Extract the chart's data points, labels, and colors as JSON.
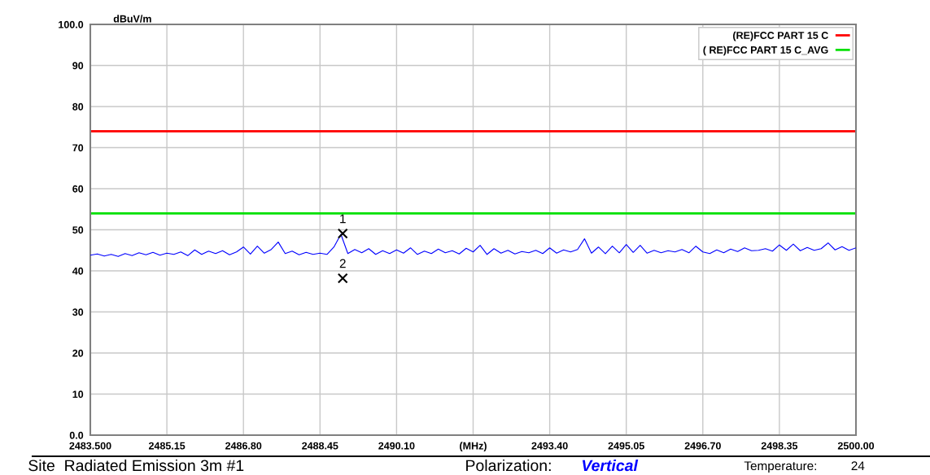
{
  "chart_data": {
    "type": "line",
    "ylabel": "dBuV/m",
    "xlim": [
      2483.5,
      2500.0
    ],
    "xticks": [
      {
        "value": 2483.5,
        "label": "2483.500"
      },
      {
        "value": 2485.15,
        "label": "2485.15"
      },
      {
        "value": 2486.8,
        "label": "2486.80"
      },
      {
        "value": 2488.45,
        "label": "2488.45"
      },
      {
        "value": 2490.1,
        "label": "2490.10"
      },
      {
        "value": 2491.75,
        "label": "(MHz)"
      },
      {
        "value": 2493.4,
        "label": "2493.40"
      },
      {
        "value": 2495.05,
        "label": "2495.05"
      },
      {
        "value": 2496.7,
        "label": "2496.70"
      },
      {
        "value": 2498.35,
        "label": "2498.35"
      },
      {
        "value": 2500.0,
        "label": "2500.00"
      }
    ],
    "ylim": [
      0,
      100
    ],
    "yticks": [
      {
        "value": 0,
        "label": "0.0"
      },
      10,
      20,
      30,
      40,
      50,
      60,
      70,
      80,
      90,
      {
        "value": 100,
        "label": "100.0"
      }
    ],
    "grid": true,
    "legend": "top right",
    "series": [
      {
        "color": "#0000ff",
        "marker": "none",
        "line_style": "solid",
        "x": [
          2483.5,
          2483.65,
          2483.8,
          2483.95,
          2484.1,
          2484.25,
          2484.4,
          2484.55,
          2484.7,
          2484.85,
          2485.0,
          2485.15,
          2485.3,
          2485.45,
          2485.6,
          2485.75,
          2485.9,
          2486.05,
          2486.2,
          2486.35,
          2486.5,
          2486.65,
          2486.8,
          2486.95,
          2487.1,
          2487.25,
          2487.4,
          2487.55,
          2487.7,
          2487.85,
          2488.0,
          2488.15,
          2488.3,
          2488.45,
          2488.6,
          2488.75,
          2488.9,
          2489.05,
          2489.2,
          2489.35,
          2489.5,
          2489.65,
          2489.8,
          2489.95,
          2490.1,
          2490.25,
          2490.4,
          2490.55,
          2490.7,
          2490.85,
          2491.0,
          2491.15,
          2491.3,
          2491.45,
          2491.6,
          2491.75,
          2491.9,
          2492.05,
          2492.2,
          2492.35,
          2492.5,
          2492.65,
          2492.8,
          2492.95,
          2493.1,
          2493.25,
          2493.4,
          2493.55,
          2493.7,
          2493.85,
          2494.0,
          2494.15,
          2494.3,
          2494.45,
          2494.6,
          2494.75,
          2494.9,
          2495.05,
          2495.2,
          2495.35,
          2495.5,
          2495.65,
          2495.8,
          2495.95,
          2496.1,
          2496.25,
          2496.4,
          2496.55,
          2496.7,
          2496.85,
          2497.0,
          2497.15,
          2497.3,
          2497.45,
          2497.6,
          2497.75,
          2497.9,
          2498.05,
          2498.2,
          2498.35,
          2498.5,
          2498.65,
          2498.8,
          2498.95,
          2499.1,
          2499.25,
          2499.4,
          2499.55,
          2499.7,
          2499.85,
          2500.0
        ],
        "values": [
          43.8,
          44.1,
          43.6,
          44.0,
          43.5,
          44.2,
          43.7,
          44.4,
          43.9,
          44.5,
          43.8,
          44.3,
          44.0,
          44.6,
          43.7,
          45.1,
          44.0,
          44.8,
          44.2,
          44.9,
          43.9,
          44.6,
          45.8,
          44.1,
          46.0,
          44.3,
          45.2,
          47.0,
          44.2,
          44.8,
          43.9,
          44.5,
          44.0,
          44.3,
          44.0,
          45.8,
          48.9,
          44.2,
          45.2,
          44.4,
          45.4,
          44.0,
          44.9,
          44.2,
          45.1,
          44.3,
          45.6,
          44.0,
          44.8,
          44.2,
          45.3,
          44.4,
          44.9,
          44.1,
          45.5,
          44.6,
          46.2,
          44.0,
          45.4,
          44.3,
          45.0,
          44.1,
          44.7,
          44.4,
          45.0,
          44.2,
          45.6,
          44.3,
          45.1,
          44.6,
          45.2,
          47.8,
          44.3,
          45.8,
          44.2,
          46.0,
          44.4,
          46.4,
          44.5,
          46.2,
          44.3,
          45.0,
          44.4,
          44.9,
          44.6,
          45.2,
          44.4,
          46.0,
          44.6,
          44.2,
          45.1,
          44.4,
          45.3,
          44.7,
          45.6,
          44.9,
          45.0,
          45.4,
          44.8,
          46.3,
          45.0,
          46.5,
          44.9,
          45.7,
          45.0,
          45.4,
          46.8,
          45.1,
          45.9,
          45.0,
          45.6
        ]
      },
      {
        "type": "scatter",
        "color": "#000000",
        "marker": "cross",
        "x": [
          2488.94,
          2488.94
        ],
        "values": [
          49.1,
          38.2
        ]
      }
    ],
    "ref_lines": [
      {
        "axis": "y",
        "value": 74,
        "label": "(RE)FCC PART 15 C",
        "color": "#ff0000",
        "line_style": "solid"
      },
      {
        "axis": "y",
        "value": 54,
        "label": "( RE)FCC PART 15 C_AVG",
        "color": "#00e000",
        "line_style": "solid"
      }
    ],
    "annotations": [
      {
        "text": "1",
        "x": 2488.94,
        "y": 49.1
      },
      {
        "text": "2",
        "x": 2488.94,
        "y": 38.2
      },
      "Site  Radiated Emission 3m #1",
      "Polarization:",
      "Vertical",
      "Temperature:",
      "24"
    ]
  }
}
